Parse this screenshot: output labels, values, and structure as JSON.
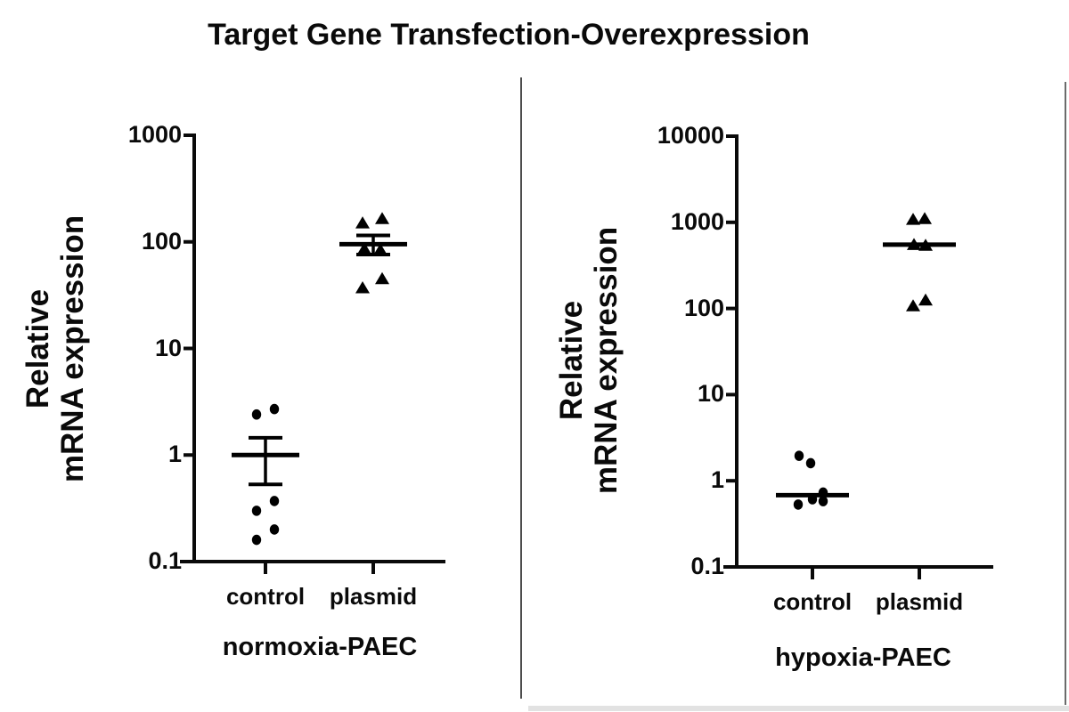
{
  "title": "Target Gene Transfection-Overexpression",
  "colors": {
    "marker": "#000000",
    "axis": "#0a0a0a",
    "divider": "#4d4d4d",
    "border": "#6b6b6b",
    "background": "#ffffff"
  },
  "chart_data": [
    {
      "type": "scatter",
      "panel": "left",
      "xlabel": "normoxia-PAEC",
      "ylabel": "Relative mRNA expression",
      "ylabel_lines": [
        "Relative",
        "mRNA expression"
      ],
      "scale": "log",
      "ylim": [
        0.1,
        1000
      ],
      "yticks": [
        1000,
        100,
        10,
        1,
        0.1
      ],
      "ytick_labels": [
        "1000",
        "100",
        "10",
        "1",
        "0.1"
      ],
      "categories": [
        "control",
        "plasmid"
      ],
      "grid": false,
      "legend": "none",
      "series": [
        {
          "name": "control",
          "marker": "circle",
          "values": [
            2.4,
            2.7,
            0.37,
            0.3,
            0.2,
            0.16
          ],
          "dx": [
            -10,
            10,
            10,
            -10,
            10,
            -10
          ],
          "mean": 1.0,
          "err_upper": 1.45,
          "err_lower": 0.53,
          "caps": true
        },
        {
          "name": "plasmid",
          "marker": "triangle",
          "values": [
            150,
            165,
            86,
            84,
            45,
            37
          ],
          "dx": [
            -12,
            10,
            -10,
            8,
            10,
            -12
          ],
          "mean": 95,
          "err_upper": 115,
          "err_lower": 76,
          "caps": true
        }
      ]
    },
    {
      "type": "scatter",
      "panel": "right",
      "xlabel": "hypoxia-PAEC",
      "ylabel": "Relative mRNA expression",
      "ylabel_lines": [
        "Relative",
        "mRNA expression"
      ],
      "scale": "log",
      "ylim": [
        0.1,
        10000
      ],
      "yticks": [
        10000,
        1000,
        100,
        10,
        1,
        0.1
      ],
      "ytick_labels": [
        "10000",
        "1000",
        "100",
        "10",
        "1",
        "0.1"
      ],
      "categories": [
        "control",
        "plasmid"
      ],
      "grid": false,
      "legend": "none",
      "series": [
        {
          "name": "control",
          "marker": "circle",
          "values": [
            1.95,
            1.6,
            0.73,
            0.61,
            0.58,
            0.53
          ],
          "dx": [
            -15,
            -2,
            12,
            0,
            12,
            -16
          ],
          "mean": 0.68,
          "err_upper": null,
          "err_lower": null,
          "caps": false
        },
        {
          "name": "plasmid",
          "marker": "triangle",
          "values": [
            1080,
            1100,
            550,
            540,
            125,
            107
          ],
          "dx": [
            -7,
            6,
            -6,
            7,
            7,
            -7
          ],
          "mean": 550,
          "err_upper": null,
          "err_lower": null,
          "caps": false
        }
      ]
    }
  ]
}
